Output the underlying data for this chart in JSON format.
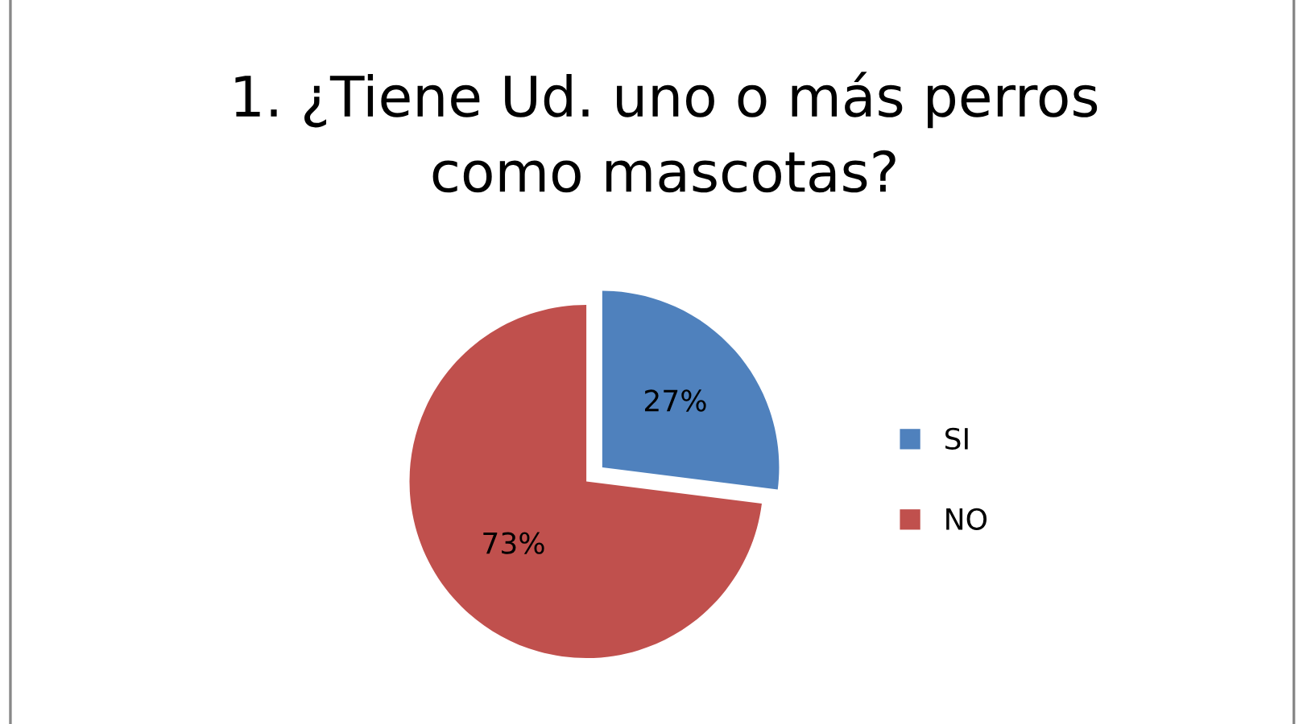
{
  "chart_data": {
    "type": "pie",
    "title": "1. ¿Tiene Ud. uno o más perros\ncomo mascotas?",
    "categories": [
      "SI",
      "NO"
    ],
    "values": [
      27,
      73
    ],
    "colors": [
      "#4f81bd",
      "#c0504d"
    ],
    "value_labels": [
      "27%",
      "73%"
    ],
    "legend": "right"
  }
}
